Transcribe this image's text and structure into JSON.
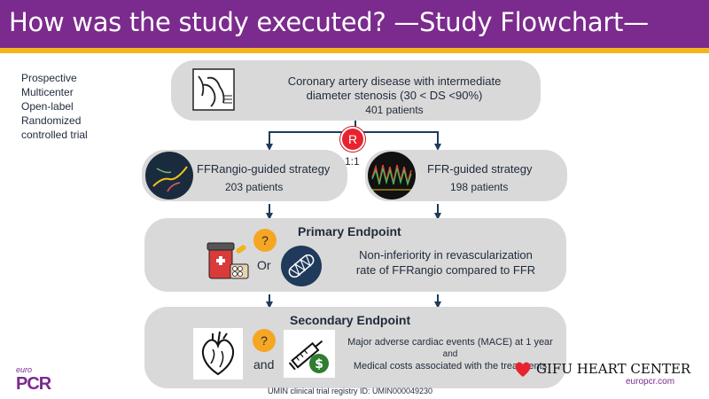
{
  "header": {
    "title": "How was the study executed? —Study Flowchart—"
  },
  "study_design": [
    "Prospective",
    "Multicenter",
    "Open-label",
    "Randomized",
    "controlled trial"
  ],
  "enrollment": {
    "line1": "Coronary artery disease with intermediate",
    "line2": "diameter stenosis (30 < DS <90%)",
    "patients": "401 patients"
  },
  "randomization": {
    "symbol": "R",
    "ratio": "1:1"
  },
  "arm_ffrangio": {
    "label": "FFRangio-guided strategy",
    "patients": "203 patients"
  },
  "arm_ffr": {
    "label": "FFR-guided strategy",
    "patients": "198 patients"
  },
  "primary": {
    "title": "Primary Endpoint",
    "question": "?",
    "or": "Or",
    "line1": "Non-inferiority in revascularization",
    "line2": "rate of FFRangio compared to FFR"
  },
  "secondary": {
    "title": "Secondary Endpoint",
    "question": "?",
    "and": "and",
    "line1": "Major adverse cardiac events (MACE) at 1 year",
    "line2": "and",
    "line3": "Medical costs associated with the treatments"
  },
  "footer": {
    "registry": "UMIN clinical trial registry ID: UMIN000049230",
    "euro": "euro",
    "pcr": "PCR",
    "gifu": "GIFU HEART CENTER",
    "site": "europcr.com"
  },
  "colors": {
    "header": "#7b2a8d",
    "stripe": "#f2b51c",
    "box": "#d9d9d9",
    "connector": "#1f3a5a",
    "randomize": "#e8232f",
    "question": "#f5a623"
  }
}
